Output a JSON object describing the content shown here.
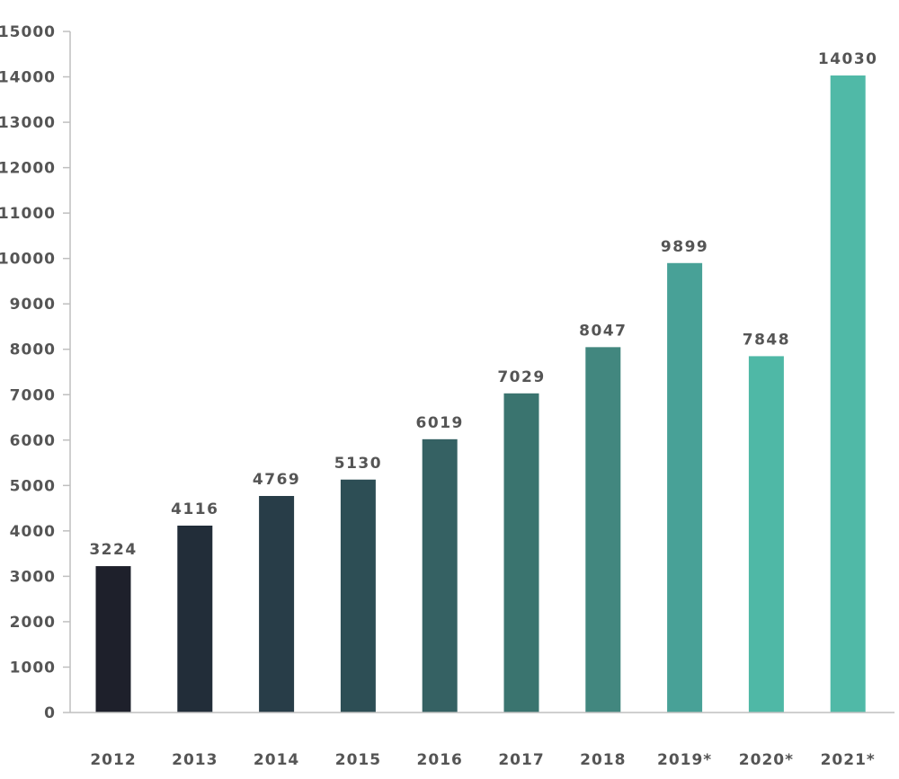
{
  "chart_data": {
    "type": "bar",
    "title": "",
    "xlabel": "",
    "ylabel": "",
    "categories": [
      "2012",
      "2013",
      "2014",
      "2015",
      "2016",
      "2017",
      "2018",
      "2019*",
      "2020*",
      "2021*"
    ],
    "values": [
      3224,
      4116,
      4769,
      5130,
      6019,
      7029,
      8047,
      9899,
      7848,
      14030
    ],
    "data_labels": [
      "3224",
      "4116",
      "4769",
      "5130",
      "6019",
      "7029",
      "8047",
      "9899",
      "7848",
      "14030"
    ],
    "ylim": [
      0,
      15000
    ],
    "yticks": [
      0,
      1000,
      2000,
      3000,
      4000,
      5000,
      6000,
      7000,
      8000,
      9000,
      10000,
      11000,
      12000,
      13000,
      14000,
      15000
    ],
    "ytick_labels": [
      "0",
      "1000",
      "2000",
      "3000",
      "4000",
      "5000",
      "6000",
      "7000",
      "8000",
      "9000",
      "10000",
      "11000",
      "12000",
      "13000",
      "14000",
      "15000"
    ],
    "grid": false,
    "legend": "none",
    "bar_colors": [
      "#1e202b",
      "#222d39",
      "#283d48",
      "#2d4e55",
      "#356163",
      "#3a746f",
      "#42877f",
      "#48a197",
      "#4fb8a6",
      "#50b9a7"
    ],
    "axis_color": "#bfbfbf",
    "label_color": "#555555"
  }
}
